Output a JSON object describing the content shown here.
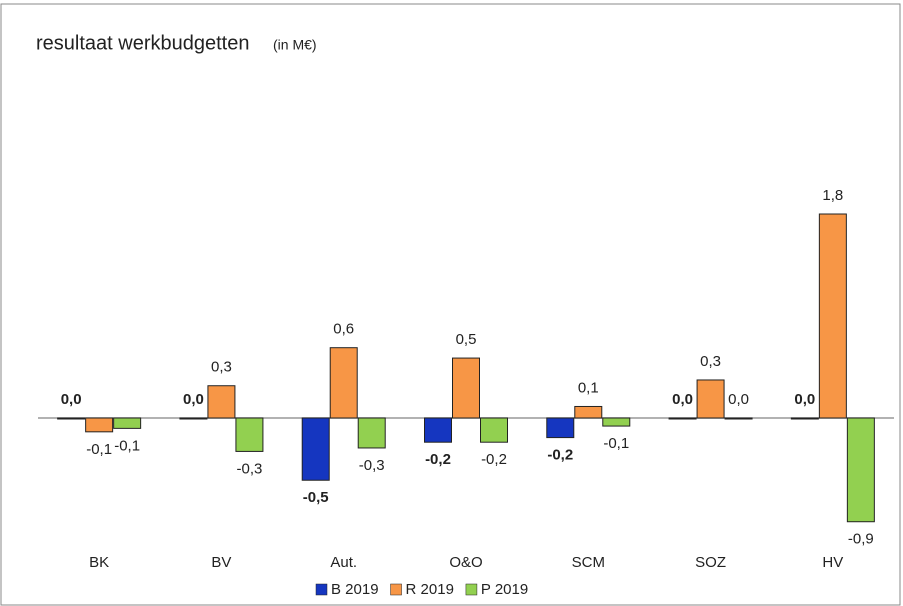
{
  "chart_data": {
    "type": "bar",
    "title": "resultaat werkbudgetten",
    "subtitle": "(in M€)",
    "categories": [
      "BK",
      "BV",
      "Aut.",
      "O&O",
      "SCM",
      "SOZ",
      "HV"
    ],
    "series": [
      {
        "name": "B 2019",
        "color": "#1536c0",
        "label_color": "#1f4fbf",
        "values": [
          0,
          0,
          -0.54,
          -0.21,
          -0.17,
          0,
          0
        ],
        "value_labels": [
          "0,0",
          "0,0",
          "-0,5",
          "-0,2",
          "-0,2",
          "0,0",
          "0,0"
        ]
      },
      {
        "name": "R 2019",
        "color": "#f79646",
        "label_color": "#222222",
        "values": [
          -0.12,
          0.28,
          0.61,
          0.52,
          0.1,
          0.33,
          1.77
        ],
        "value_labels": [
          "-0,1",
          "0,3",
          "0,6",
          "0,5",
          "0,1",
          "0,3",
          "1,8"
        ]
      },
      {
        "name": "P 2019",
        "color": "#92d050",
        "label_color": "#222222",
        "values": [
          -0.09,
          -0.29,
          -0.26,
          -0.21,
          -0.07,
          0,
          -0.9
        ],
        "value_labels": [
          "-0,1",
          "-0,3",
          "-0,3",
          "-0,2",
          "-0,1",
          "0,0",
          "-0,9"
        ]
      }
    ]
  }
}
